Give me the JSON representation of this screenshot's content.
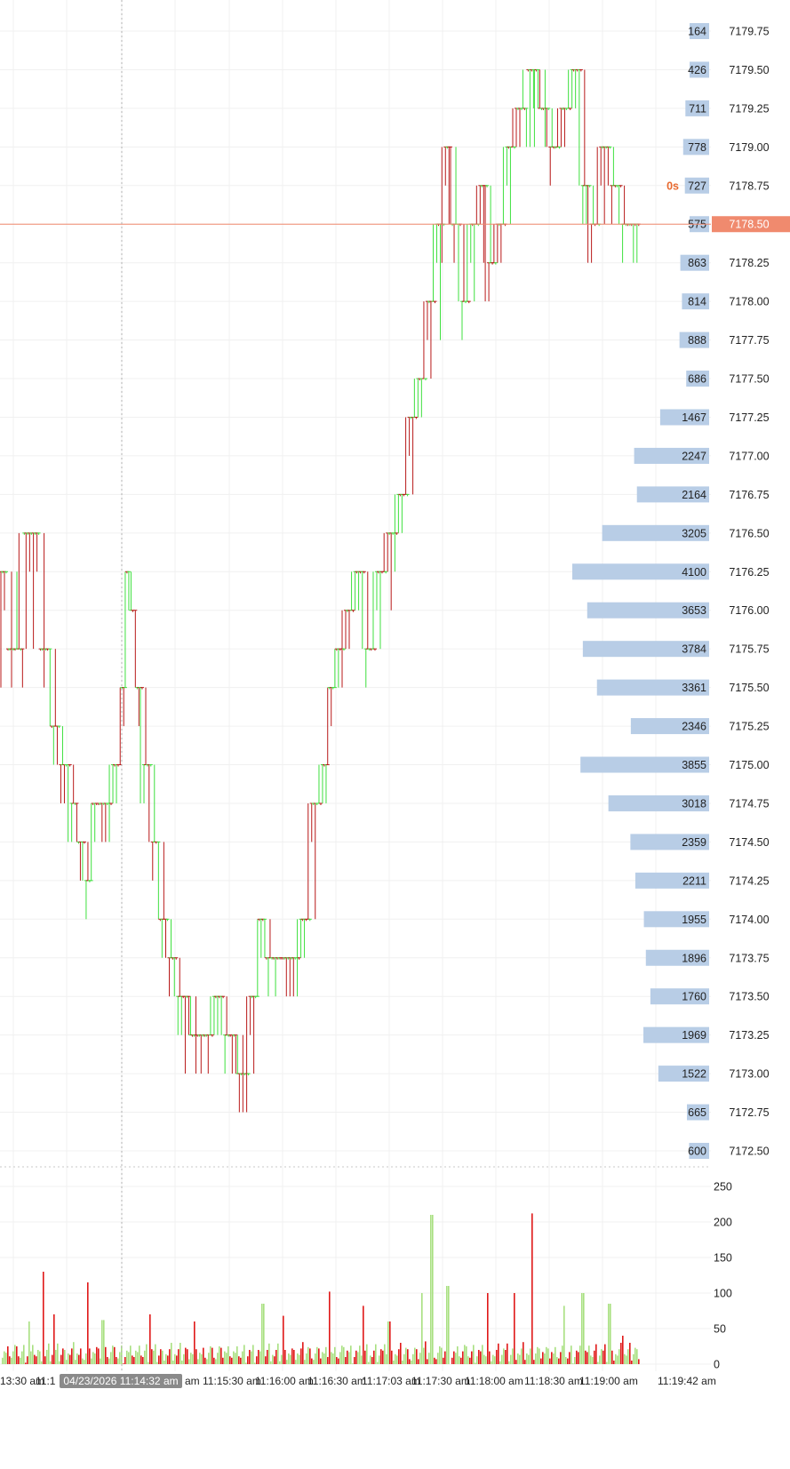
{
  "chart_data": {
    "type": "candlestick-tick-with-volume-profile",
    "price_axis": {
      "ticks": [
        "7179.75",
        "7179.50",
        "7179.25",
        "7179.00",
        "7178.75",
        "7178.50",
        "7178.25",
        "7178.00",
        "7177.75",
        "7177.50",
        "7177.25",
        "7177.00",
        "7176.75",
        "7176.50",
        "7176.25",
        "7176.00",
        "7175.75",
        "7175.50",
        "7175.25",
        "7175.00",
        "7174.75",
        "7174.50",
        "7174.25",
        "7174.00",
        "7173.75",
        "7173.50",
        "7173.25",
        "7173.00",
        "7172.75",
        "7172.50"
      ],
      "ylim": [
        7172.5,
        7179.75
      ],
      "current_price": "7178.50",
      "countdown": "0s"
    },
    "volume_profile": {
      "levels": [
        {
          "price": 7179.75,
          "volume": 164
        },
        {
          "price": 7179.5,
          "volume": 426
        },
        {
          "price": 7179.25,
          "volume": 711
        },
        {
          "price": 7179.0,
          "volume": 778
        },
        {
          "price": 7178.75,
          "volume": 727
        },
        {
          "price": 7178.5,
          "volume": 575
        },
        {
          "price": 7178.25,
          "volume": 863
        },
        {
          "price": 7178.0,
          "volume": 814
        },
        {
          "price": 7177.75,
          "volume": 888
        },
        {
          "price": 7177.5,
          "volume": 686
        },
        {
          "price": 7177.25,
          "volume": 1467
        },
        {
          "price": 7177.0,
          "volume": 2247
        },
        {
          "price": 7176.75,
          "volume": 2164
        },
        {
          "price": 7176.5,
          "volume": 3205
        },
        {
          "price": 7176.25,
          "volume": 4100
        },
        {
          "price": 7176.0,
          "volume": 3653
        },
        {
          "price": 7175.75,
          "volume": 3784
        },
        {
          "price": 7175.5,
          "volume": 3361
        },
        {
          "price": 7175.25,
          "volume": 2346
        },
        {
          "price": 7175.0,
          "volume": 3855
        },
        {
          "price": 7174.75,
          "volume": 3018
        },
        {
          "price": 7174.5,
          "volume": 2359
        },
        {
          "price": 7174.25,
          "volume": 2211
        },
        {
          "price": 7174.0,
          "volume": 1955
        },
        {
          "price": 7173.75,
          "volume": 1896
        },
        {
          "price": 7173.5,
          "volume": 1760
        },
        {
          "price": 7173.25,
          "volume": 1969
        },
        {
          "price": 7173.0,
          "volume": 1522
        },
        {
          "price": 7172.75,
          "volume": 665
        },
        {
          "price": 7172.5,
          "volume": 600
        }
      ]
    },
    "volume_axis": {
      "ticks": [
        "250",
        "200",
        "150",
        "100",
        "50",
        "0"
      ],
      "ylim": [
        0,
        270
      ]
    },
    "time_axis": {
      "labels": [
        "13:30 am",
        "11:1",
        "am",
        "11:15:30 am",
        "11:16:00 am",
        "11:16:30 am",
        "11:17:03 am",
        "11:17:30 am",
        "11:18:00 am",
        "11:18:30 am",
        "11:19:00 am",
        "11:19:42 am"
      ],
      "crosshair_label": "04/23/2026 11:14:32 am"
    },
    "price_path": [
      {
        "t": 0.0,
        "p": 7176.25
      },
      {
        "t": 0.025,
        "p": 7175.75
      },
      {
        "t": 0.045,
        "p": 7176.5
      },
      {
        "t": 0.068,
        "p": 7175.75
      },
      {
        "t": 0.078,
        "p": 7175.25
      },
      {
        "t": 0.093,
        "p": 7175.0
      },
      {
        "t": 0.105,
        "p": 7174.75
      },
      {
        "t": 0.113,
        "p": 7174.5
      },
      {
        "t": 0.125,
        "p": 7174.25
      },
      {
        "t": 0.135,
        "p": 7174.75
      },
      {
        "t": 0.15,
        "p": 7174.75
      },
      {
        "t": 0.165,
        "p": 7175.0
      },
      {
        "t": 0.172,
        "p": 7175.5
      },
      {
        "t": 0.18,
        "p": 7176.25
      },
      {
        "t": 0.186,
        "p": 7176.0
      },
      {
        "t": 0.193,
        "p": 7175.5
      },
      {
        "t": 0.205,
        "p": 7175.0
      },
      {
        "t": 0.218,
        "p": 7174.5
      },
      {
        "t": 0.228,
        "p": 7174.0
      },
      {
        "t": 0.24,
        "p": 7173.75
      },
      {
        "t": 0.255,
        "p": 7173.5
      },
      {
        "t": 0.272,
        "p": 7173.25
      },
      {
        "t": 0.29,
        "p": 7173.25
      },
      {
        "t": 0.305,
        "p": 7173.5
      },
      {
        "t": 0.32,
        "p": 7173.25
      },
      {
        "t": 0.34,
        "p": 7173.0
      },
      {
        "t": 0.355,
        "p": 7173.5
      },
      {
        "t": 0.365,
        "p": 7174.0
      },
      {
        "t": 0.375,
        "p": 7173.75
      },
      {
        "t": 0.39,
        "p": 7173.75
      },
      {
        "t": 0.41,
        "p": 7173.75
      },
      {
        "t": 0.425,
        "p": 7174.0
      },
      {
        "t": 0.44,
        "p": 7174.75
      },
      {
        "t": 0.452,
        "p": 7175.0
      },
      {
        "t": 0.462,
        "p": 7175.5
      },
      {
        "t": 0.472,
        "p": 7175.75
      },
      {
        "t": 0.485,
        "p": 7176.0
      },
      {
        "t": 0.5,
        "p": 7176.25
      },
      {
        "t": 0.515,
        "p": 7175.75
      },
      {
        "t": 0.53,
        "p": 7176.25
      },
      {
        "t": 0.545,
        "p": 7176.5
      },
      {
        "t": 0.56,
        "p": 7176.75
      },
      {
        "t": 0.572,
        "p": 7177.25
      },
      {
        "t": 0.585,
        "p": 7177.5
      },
      {
        "t": 0.598,
        "p": 7178.0
      },
      {
        "t": 0.61,
        "p": 7178.5
      },
      {
        "t": 0.622,
        "p": 7179.0
      },
      {
        "t": 0.633,
        "p": 7178.5
      },
      {
        "t": 0.645,
        "p": 7178.0
      },
      {
        "t": 0.658,
        "p": 7178.5
      },
      {
        "t": 0.67,
        "p": 7178.75
      },
      {
        "t": 0.682,
        "p": 7178.25
      },
      {
        "t": 0.695,
        "p": 7178.5
      },
      {
        "t": 0.708,
        "p": 7179.0
      },
      {
        "t": 0.722,
        "p": 7179.25
      },
      {
        "t": 0.738,
        "p": 7179.5
      },
      {
        "t": 0.755,
        "p": 7179.25
      },
      {
        "t": 0.77,
        "p": 7179.0
      },
      {
        "t": 0.785,
        "p": 7179.25
      },
      {
        "t": 0.8,
        "p": 7179.5
      },
      {
        "t": 0.812,
        "p": 7178.75
      },
      {
        "t": 0.825,
        "p": 7178.5
      },
      {
        "t": 0.84,
        "p": 7179.0
      },
      {
        "t": 0.855,
        "p": 7178.75
      },
      {
        "t": 0.87,
        "p": 7178.5
      },
      {
        "t": 0.885,
        "p": 7178.5
      }
    ],
    "grid": true,
    "colors": {
      "up": "#3ee03e",
      "down": "#b81818",
      "profile_bar": "#b8cde6",
      "current_price_line": "#f08a6e",
      "current_price_tag": "#f08a6e",
      "countdown": "#e8692f",
      "vol_up": "#a8e080",
      "vol_down": "#e01818",
      "crosshair_tag": "#8a8a8a"
    }
  }
}
